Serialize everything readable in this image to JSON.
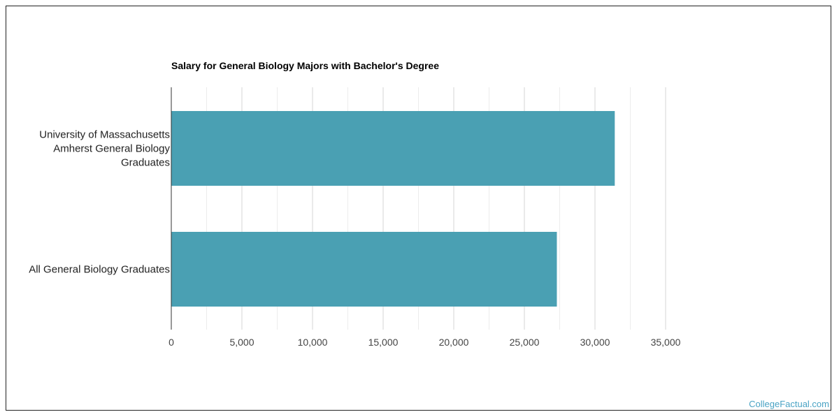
{
  "chart_data": {
    "type": "bar",
    "orientation": "horizontal",
    "title": "Salary for General Biology Majors with Bachelor's Degree",
    "categories": [
      [
        "University of Massachusetts",
        "Amherst General Biology",
        "Graduates"
      ],
      [
        "All General Biology Graduates"
      ]
    ],
    "values": [
      31400,
      27300
    ],
    "x_ticks": [
      "0",
      "5,000",
      "10,000",
      "15,000",
      "20,000",
      "25,000",
      "30,000",
      "35,000"
    ],
    "xlim": [
      0,
      35000
    ],
    "grid": true,
    "bar_color": "#4aa0b3"
  },
  "watermark": "CollegeFactual.com"
}
